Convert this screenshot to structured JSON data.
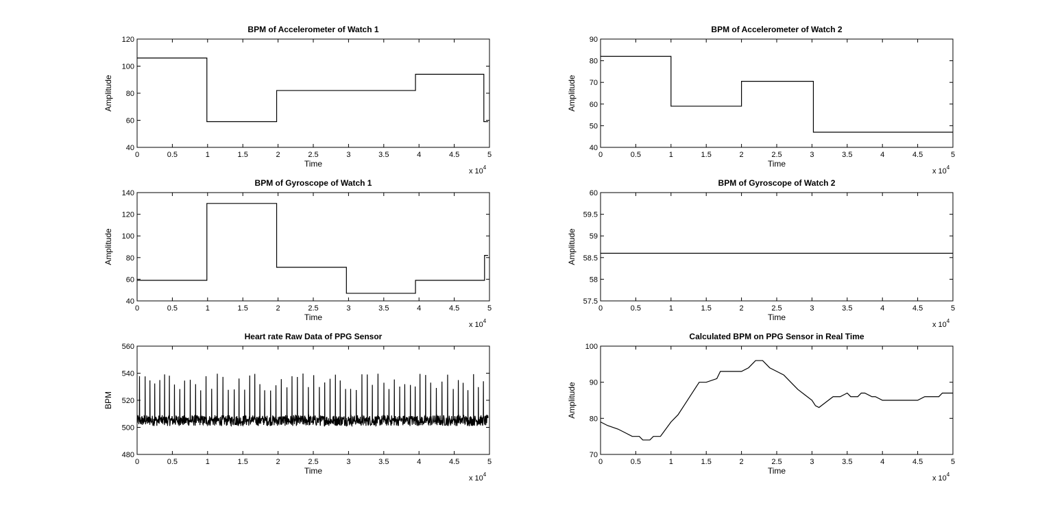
{
  "chart_data": [
    {
      "type": "line",
      "title": "BPM of Accelerometer of Watch 1",
      "xlabel": "Time",
      "ylabel": "Amplitude",
      "x_multiplier_label": "x 10",
      "x_multiplier_exp": "4",
      "xlim": [
        0,
        5
      ],
      "ylim": [
        40,
        120
      ],
      "xticks": [
        0,
        0.5,
        1,
        1.5,
        2,
        2.5,
        3,
        3.5,
        4,
        4.5,
        5
      ],
      "yticks": [
        40,
        60,
        80,
        100,
        120
      ],
      "series": [
        {
          "x": [
            0,
            0.99,
            0.99,
            1.98,
            1.98,
            3.95,
            3.95,
            4.92,
            4.92,
            4.98
          ],
          "y": [
            106,
            106,
            59,
            59,
            82,
            82,
            94,
            94,
            59,
            59
          ]
        }
      ]
    },
    {
      "type": "line",
      "title": "BPM of Accelerometer of Watch 2",
      "xlabel": "Time",
      "ylabel": "Amplitude",
      "x_multiplier_label": "x 10",
      "x_multiplier_exp": "4",
      "xlim": [
        0,
        5
      ],
      "ylim": [
        40,
        90
      ],
      "xticks": [
        0,
        0.5,
        1,
        1.5,
        2,
        2.5,
        3,
        3.5,
        4,
        4.5,
        5
      ],
      "yticks": [
        40,
        50,
        60,
        70,
        80,
        90
      ],
      "series": [
        {
          "x": [
            0,
            1.0,
            1.0,
            2.0,
            2.0,
            3.02,
            3.02,
            5.0
          ],
          "y": [
            82,
            82,
            59,
            59,
            70.5,
            70.5,
            47,
            47
          ]
        }
      ]
    },
    {
      "type": "line",
      "title": "BPM of Gyroscope of Watch 1",
      "xlabel": "Time",
      "ylabel": "Amplitude",
      "x_multiplier_label": "x 10",
      "x_multiplier_exp": "4",
      "xlim": [
        0,
        5
      ],
      "ylim": [
        40,
        140
      ],
      "xticks": [
        0,
        0.5,
        1,
        1.5,
        2,
        2.5,
        3,
        3.5,
        4,
        4.5,
        5
      ],
      "yticks": [
        40,
        60,
        80,
        100,
        120,
        140
      ],
      "series": [
        {
          "x": [
            0,
            0.99,
            0.99,
            1.98,
            1.98,
            2.97,
            2.97,
            3.95,
            3.95,
            4.93,
            4.93,
            4.98
          ],
          "y": [
            59,
            59,
            130,
            130,
            71,
            71,
            47,
            47,
            59,
            59,
            82,
            82
          ]
        }
      ]
    },
    {
      "type": "line",
      "title": "BPM of Gyroscope of Watch 2",
      "xlabel": "Time",
      "ylabel": "Amplitude",
      "x_multiplier_label": "x 10",
      "x_multiplier_exp": "4",
      "xlim": [
        0,
        5
      ],
      "ylim": [
        57.5,
        60
      ],
      "xticks": [
        0,
        0.5,
        1,
        1.5,
        2,
        2.5,
        3,
        3.5,
        4,
        4.5,
        5
      ],
      "yticks": [
        57.5,
        58,
        58.5,
        59,
        59.5,
        60
      ],
      "series": [
        {
          "x": [
            0,
            5
          ],
          "y": [
            58.6,
            58.6
          ]
        }
      ]
    },
    {
      "type": "line",
      "title": "Heart rate Raw Data of PPG Sensor",
      "xlabel": "Time",
      "ylabel": "BPM",
      "x_multiplier_label": "x 10",
      "x_multiplier_exp": "4",
      "xlim": [
        0,
        5
      ],
      "ylim": [
        480,
        560
      ],
      "xticks": [
        0,
        0.5,
        1,
        1.5,
        2,
        2.5,
        3,
        3.5,
        4,
        4.5,
        5
      ],
      "yticks": [
        480,
        500,
        520,
        540,
        560
      ],
      "signal": {
        "baseline": 505,
        "noise_amplitude": 4,
        "peak_period": 0.075,
        "peak_min": 527,
        "peak_max": 540,
        "x_start": 0,
        "x_end": 4.98
      }
    },
    {
      "type": "line",
      "title": "Calculated BPM on PPG Sensor in Real Time",
      "xlabel": "Time",
      "ylabel": "Amplitude",
      "x_multiplier_label": "x 10",
      "x_multiplier_exp": "4",
      "xlim": [
        0,
        5
      ],
      "ylim": [
        70,
        100
      ],
      "xticks": [
        0,
        0.5,
        1,
        1.5,
        2,
        2.5,
        3,
        3.5,
        4,
        4.5,
        5
      ],
      "yticks": [
        70,
        80,
        90,
        100
      ],
      "series": [
        {
          "x": [
            0,
            0.1,
            0.25,
            0.35,
            0.45,
            0.55,
            0.6,
            0.7,
            0.75,
            0.85,
            1.0,
            1.1,
            1.2,
            1.3,
            1.4,
            1.5,
            1.65,
            1.7,
            1.8,
            2.0,
            2.1,
            2.2,
            2.3,
            2.4,
            2.5,
            2.6,
            2.7,
            2.8,
            2.9,
            3.0,
            3.05,
            3.1,
            3.2,
            3.3,
            3.4,
            3.45,
            3.5,
            3.55,
            3.65,
            3.7,
            3.75,
            3.85,
            3.9,
            4.0,
            4.1,
            4.5,
            4.6,
            4.7,
            4.8,
            4.85,
            5.0
          ],
          "y": [
            79,
            78,
            77,
            76,
            75,
            75,
            74,
            74,
            75,
            75,
            79,
            81,
            84,
            87,
            90,
            90,
            91,
            93,
            93,
            93,
            94,
            96,
            96,
            94,
            93,
            92,
            90,
            88,
            86.5,
            85,
            83.5,
            83,
            84.5,
            86,
            86,
            86.5,
            87,
            86,
            86,
            87,
            87,
            86,
            86,
            85,
            85,
            85,
            86,
            86,
            86,
            87,
            87
          ]
        }
      ]
    }
  ]
}
